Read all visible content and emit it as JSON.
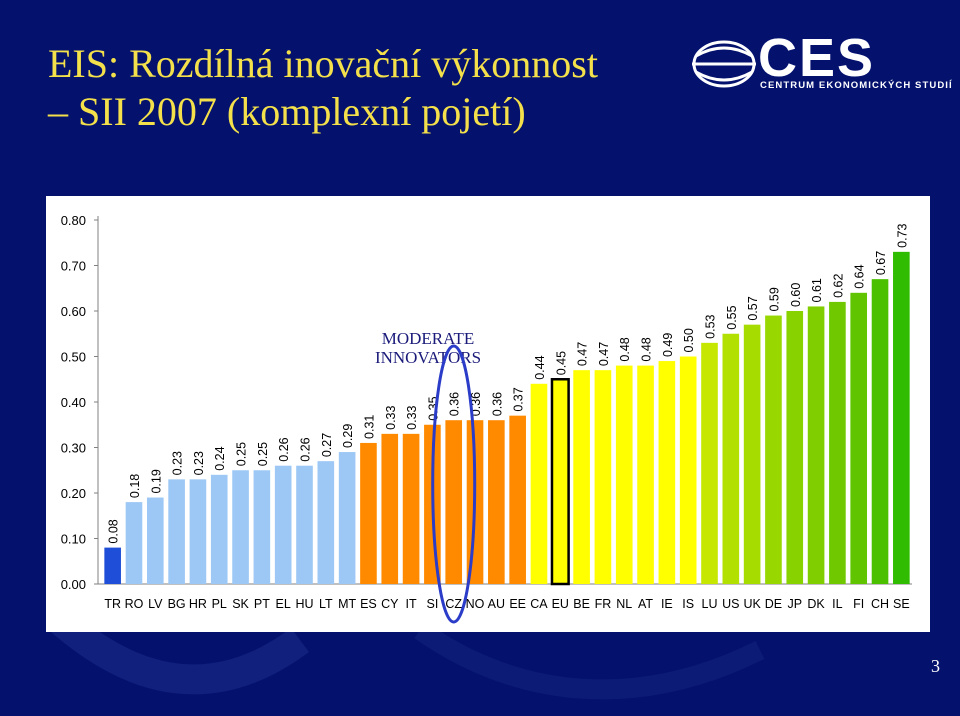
{
  "slide": {
    "title_line1": "EIS: Rozdílná inovační výkonnost",
    "title_line2": "– SII 2007 (komplexní pojetí)",
    "page_number": "3",
    "title_color": "#f4e04a",
    "background_color": "#04126e"
  },
  "logo": {
    "text": "CES",
    "subtitle": "CENTRUM EKONOMICKÝCH STUDIÍ",
    "icon": "globe-swoosh-icon"
  },
  "chart_data": {
    "type": "bar",
    "title": "",
    "xlabel": "",
    "ylabel": "",
    "ylim": [
      0,
      0.8
    ],
    "yticks": [
      "0.00",
      "0.10",
      "0.20",
      "0.30",
      "0.40",
      "0.50",
      "0.60",
      "0.70",
      "0.80"
    ],
    "grid": false,
    "legend": "none",
    "categories": [
      "TR",
      "RO",
      "LV",
      "BG",
      "HR",
      "PL",
      "SK",
      "PT",
      "EL",
      "HU",
      "LT",
      "MT",
      "ES",
      "CY",
      "IT",
      "SI",
      "CZ",
      "NO",
      "AU",
      "EE",
      "CA",
      "EU",
      "BE",
      "FR",
      "NL",
      "AT",
      "IE",
      "IS",
      "LU",
      "US",
      "UK",
      "DE",
      "JP",
      "DK",
      "IL",
      "FI",
      "CH",
      "SE"
    ],
    "values": [
      0.08,
      0.18,
      0.19,
      0.23,
      0.23,
      0.24,
      0.25,
      0.25,
      0.26,
      0.26,
      0.27,
      0.29,
      0.31,
      0.33,
      0.33,
      0.35,
      0.36,
      0.36,
      0.36,
      0.37,
      0.44,
      0.45,
      0.47,
      0.47,
      0.48,
      0.48,
      0.49,
      0.5,
      0.53,
      0.55,
      0.57,
      0.59,
      0.6,
      0.61,
      0.62,
      0.64,
      0.67,
      0.73
    ],
    "bar_colors": [
      "#1f4fd8",
      "#9dc8f5",
      "#9dc8f5",
      "#9dc8f5",
      "#9dc8f5",
      "#9dc8f5",
      "#9dc8f5",
      "#9dc8f5",
      "#9dc8f5",
      "#9dc8f5",
      "#9dc8f5",
      "#9dc8f5",
      "#ff8a00",
      "#ff8a00",
      "#ff8a00",
      "#ff8a00",
      "#ff8a00",
      "#ff8a00",
      "#ff8a00",
      "#ff8a00",
      "#ffff00",
      "#ffff00",
      "#ffff00",
      "#ffff00",
      "#ffff00",
      "#ffff00",
      "#ffff00",
      "#ffff00",
      "#c6e800",
      "#b2e000",
      "#a6dc00",
      "#98d800",
      "#88d200",
      "#80ce00",
      "#70c800",
      "#60c400",
      "#4ac000",
      "#30bc00"
    ],
    "highlight": {
      "category": "CZ",
      "style": "blue-ellipse"
    },
    "outlined_bar": "EU",
    "annotation": {
      "line1": "MODERATE",
      "line2": "INNOVATORS",
      "color": "#1a1a7a"
    }
  }
}
